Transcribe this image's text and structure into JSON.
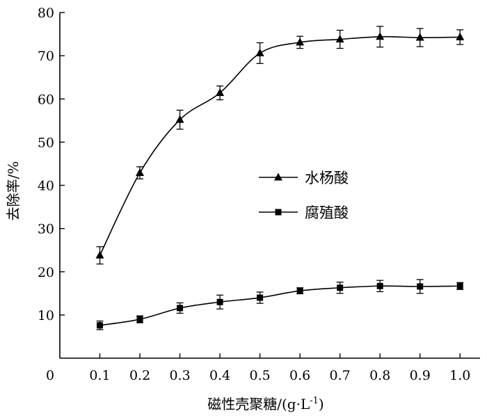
{
  "chart_data": {
    "type": "line",
    "xlabel_main": "磁性壳聚糖/(g·L",
    "xlabel_sup": "-1",
    "xlabel_close": ")",
    "ylabel": "去除率/%",
    "x_origin_label": "0",
    "x": [
      0.1,
      0.2,
      0.3,
      0.4,
      0.5,
      0.6,
      0.7,
      0.8,
      0.9,
      1.0
    ],
    "x_tick_labels": [
      "0.1",
      "0.2",
      "0.3",
      "0.4",
      "0.5",
      "0.6",
      "0.7",
      "0.8",
      "0.9",
      "1.0"
    ],
    "xlim": [
      0,
      1.05
    ],
    "ylim": [
      0,
      80
    ],
    "y_ticks": [
      10,
      20,
      30,
      40,
      50,
      60,
      70,
      80
    ],
    "y_tick_labels": [
      "10",
      "20",
      "30",
      "40",
      "50",
      "60",
      "70",
      "80"
    ],
    "legend_position": "center-right",
    "series": [
      {
        "name": "水杨酸",
        "marker": "triangle",
        "values": [
          23.8,
          42.9,
          55.2,
          61.4,
          70.6,
          73.1,
          73.8,
          74.4,
          74.2,
          74.3
        ],
        "errors": [
          2.0,
          1.4,
          2.2,
          1.6,
          2.4,
          1.4,
          2.1,
          2.4,
          2.1,
          1.7
        ]
      },
      {
        "name": "腐殖酸",
        "marker": "square",
        "values": [
          7.6,
          9.0,
          11.6,
          13.0,
          14.0,
          15.6,
          16.3,
          16.7,
          16.6,
          16.7
        ],
        "errors": [
          1.0,
          0.8,
          1.2,
          1.6,
          1.3,
          0.7,
          1.3,
          1.3,
          1.6,
          0.8
        ]
      }
    ]
  }
}
